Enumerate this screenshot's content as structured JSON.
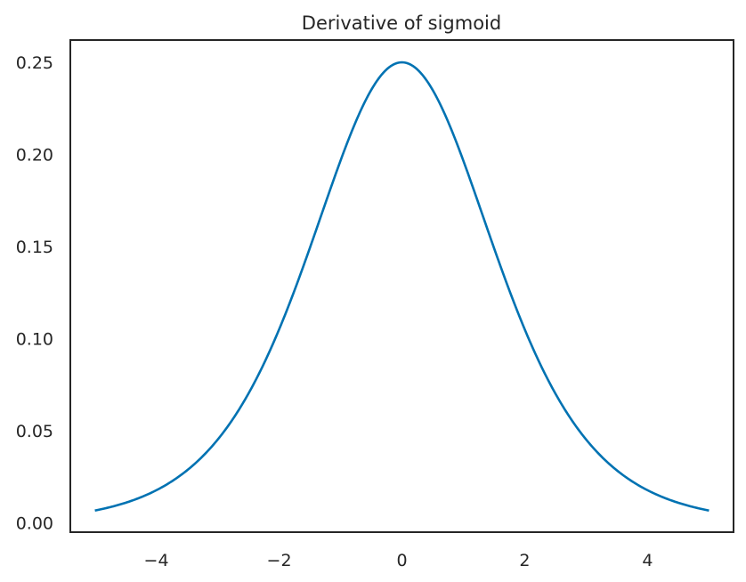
{
  "chart_data": {
    "type": "line",
    "title": "Derivative of sigmoid",
    "xlabel": "",
    "ylabel": "",
    "xlim": [
      -5.4,
      5.4
    ],
    "ylim": [
      -0.0051,
      0.2621
    ],
    "xticks": [
      -4,
      -2,
      0,
      2,
      4
    ],
    "xtick_labels": [
      "−4",
      "−2",
      "0",
      "2",
      "4"
    ],
    "yticks": [
      0.0,
      0.05,
      0.1,
      0.15,
      0.2,
      0.25
    ],
    "ytick_labels": [
      "0.00",
      "0.05",
      "0.10",
      "0.15",
      "0.20",
      "0.25"
    ],
    "grid": false,
    "legend": false,
    "line_color": "#0072b2",
    "series": [
      {
        "x": [
          -5.0,
          -4.5,
          -4.0,
          -3.5,
          -3.0,
          -2.5,
          -2.0,
          -1.5,
          -1.0,
          -0.5,
          0.0,
          0.5,
          1.0,
          1.5,
          2.0,
          2.5,
          3.0,
          3.5,
          4.0,
          4.5,
          5.0
        ],
        "values": [
          0.0066,
          0.0109,
          0.0177,
          0.0285,
          0.0452,
          0.0701,
          0.105,
          0.1491,
          0.1966,
          0.235,
          0.25,
          0.235,
          0.1966,
          0.1491,
          0.105,
          0.0701,
          0.0452,
          0.0285,
          0.0177,
          0.0109,
          0.0066
        ]
      }
    ]
  }
}
